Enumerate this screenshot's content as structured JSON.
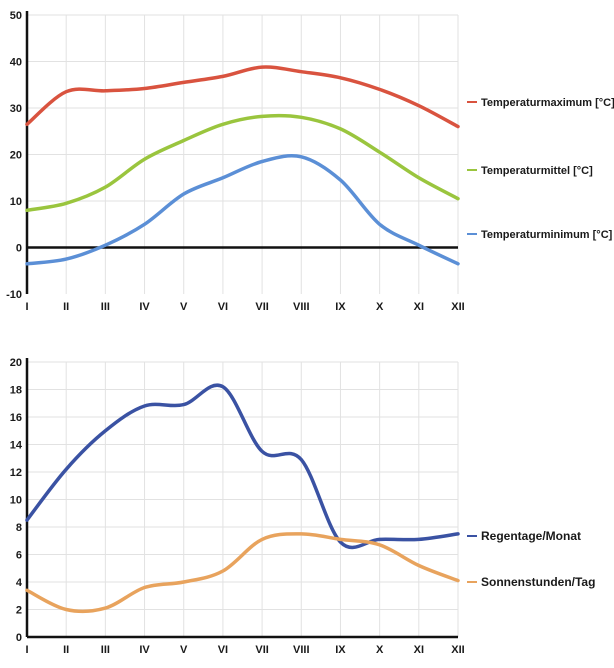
{
  "chart_data": [
    {
      "type": "line",
      "categories": [
        "I",
        "II",
        "III",
        "IV",
        "V",
        "VI",
        "VII",
        "VIII",
        "IX",
        "X",
        "XI",
        "XII"
      ],
      "ylim": [
        -10,
        50
      ],
      "yticks": [
        -10,
        0,
        10,
        20,
        30,
        40,
        50
      ],
      "grid": true,
      "legend_position": "right",
      "series": [
        {
          "name": "Temperaturmaximum [°C]",
          "color": "#d9533f",
          "values": [
            26.5,
            33.5,
            33.7,
            34.2,
            35.5,
            36.8,
            38.8,
            37.8,
            36.5,
            34,
            30.5,
            26
          ]
        },
        {
          "name": "Temperaturmittel [°C]",
          "color": "#9ac53e",
          "values": [
            8,
            9.5,
            13,
            19,
            23,
            26.5,
            28.2,
            28,
            25.5,
            20.5,
            15,
            10.5
          ]
        },
        {
          "name": "Temperaturminimum [°C]",
          "color": "#5b8fd6",
          "values": [
            -3.5,
            -2.5,
            0.5,
            5,
            11.5,
            15,
            18.5,
            19.5,
            14.5,
            5,
            0.5,
            -3.5
          ]
        }
      ]
    },
    {
      "type": "line",
      "categories": [
        "I",
        "II",
        "III",
        "IV",
        "V",
        "VI",
        "VII",
        "VIII",
        "IX",
        "X",
        "XI",
        "XII"
      ],
      "ylim": [
        0,
        20
      ],
      "yticks": [
        0,
        2,
        4,
        6,
        8,
        10,
        12,
        14,
        16,
        18,
        20
      ],
      "grid": true,
      "legend_position": "right",
      "series": [
        {
          "name": "Regentage/Monat",
          "color": "#3a52a3",
          "values": [
            8.5,
            12.2,
            15,
            16.8,
            16.9,
            18.2,
            13.5,
            12.9,
            6.9,
            7.1,
            7.1,
            7.5
          ]
        },
        {
          "name": "Sonnenstunden/Tag",
          "color": "#e8a35d",
          "values": [
            3.4,
            2,
            2.1,
            3.6,
            4,
            4.8,
            7.1,
            7.5,
            7.1,
            6.7,
            5.2,
            4.1
          ]
        }
      ]
    }
  ]
}
